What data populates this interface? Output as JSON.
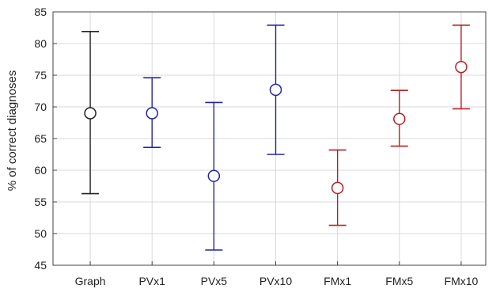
{
  "chart_data": {
    "type": "scatter",
    "title": "",
    "xlabel": "",
    "ylabel": "% of correct diagnoses",
    "ylim": [
      45,
      85
    ],
    "yticks": [
      45,
      50,
      55,
      60,
      65,
      70,
      75,
      80,
      85
    ],
    "grid": true,
    "categories": [
      "Graph",
      "PVx1",
      "PVx5",
      "PVx10",
      "FMx1",
      "FMx5",
      "FMx10"
    ],
    "points": [
      {
        "category": "Graph",
        "mean": 69.0,
        "lower": 56.3,
        "upper": 81.9,
        "color": "#222222"
      },
      {
        "category": "PVx1",
        "mean": 69.0,
        "lower": 63.6,
        "upper": 74.6,
        "color": "#2424a0"
      },
      {
        "category": "PVx5",
        "mean": 59.1,
        "lower": 47.4,
        "upper": 70.7,
        "color": "#2424a0"
      },
      {
        "category": "PVx10",
        "mean": 72.7,
        "lower": 62.5,
        "upper": 82.9,
        "color": "#2424a0"
      },
      {
        "category": "FMx1",
        "mean": 57.2,
        "lower": 51.3,
        "upper": 63.2,
        "color": "#b22222"
      },
      {
        "category": "FMx5",
        "mean": 68.1,
        "lower": 63.8,
        "upper": 72.6,
        "color": "#b22222"
      },
      {
        "category": "FMx10",
        "mean": 76.3,
        "lower": 69.7,
        "upper": 82.9,
        "color": "#b22222"
      }
    ]
  }
}
